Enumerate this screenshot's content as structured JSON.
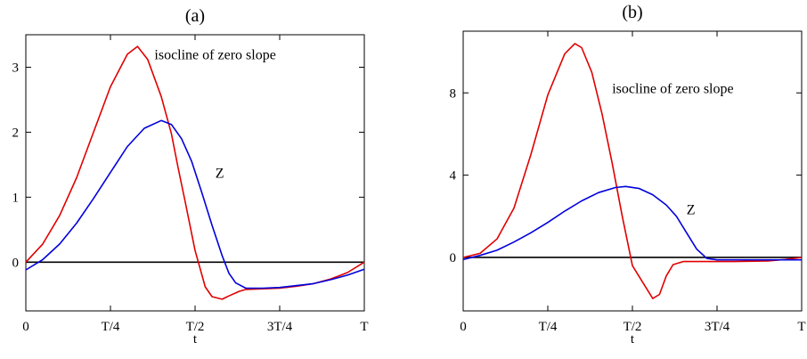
{
  "chart_data": [
    {
      "type": "line",
      "title": "(a)",
      "xlabel": "t",
      "ylabel": "",
      "xlim": [
        0,
        1
      ],
      "ylim": [
        -0.75,
        3.5
      ],
      "xticks": [
        0,
        0.25,
        0.5,
        0.75,
        1
      ],
      "xtick_labels": [
        "0",
        "T/4",
        "T/2",
        "3T/4",
        "T"
      ],
      "yticks": [
        0,
        1,
        2,
        3
      ],
      "ytick_labels": [
        "0",
        "1",
        "2",
        "3"
      ],
      "grid": false,
      "zero_line": true,
      "series": [
        {
          "name": "isocline of zero slope",
          "color": "#e00000",
          "x": [
            0,
            0.05,
            0.1,
            0.15,
            0.2,
            0.25,
            0.3,
            0.33,
            0.36,
            0.4,
            0.43,
            0.45,
            0.47,
            0.5,
            0.53,
            0.55,
            0.58,
            0.6,
            0.63,
            0.65,
            0.7,
            0.75,
            0.8,
            0.85,
            0.9,
            0.95,
            1
          ],
          "y": [
            0,
            0.28,
            0.72,
            1.3,
            2.0,
            2.7,
            3.2,
            3.32,
            3.12,
            2.55,
            1.98,
            1.45,
            0.95,
            0.18,
            -0.38,
            -0.53,
            -0.57,
            -0.52,
            -0.45,
            -0.42,
            -0.41,
            -0.4,
            -0.37,
            -0.33,
            -0.26,
            -0.16,
            0
          ]
        },
        {
          "name": "Z",
          "color": "#0000dd",
          "x": [
            0,
            0.05,
            0.1,
            0.15,
            0.2,
            0.25,
            0.3,
            0.35,
            0.4,
            0.43,
            0.46,
            0.49,
            0.52,
            0.55,
            0.58,
            0.6,
            0.62,
            0.65,
            0.7,
            0.75,
            0.8,
            0.85,
            0.9,
            0.95,
            1
          ],
          "y": [
            -0.12,
            0.04,
            0.28,
            0.6,
            0.98,
            1.38,
            1.78,
            2.06,
            2.18,
            2.12,
            1.9,
            1.55,
            1.07,
            0.57,
            0.1,
            -0.17,
            -0.32,
            -0.4,
            -0.4,
            -0.39,
            -0.36,
            -0.33,
            -0.27,
            -0.2,
            -0.11
          ]
        }
      ],
      "annotations": [
        {
          "text": "isocline of zero slope",
          "x": 0.38,
          "y": 3.12
        },
        {
          "text": "Z",
          "x": 0.56,
          "y": 1.3
        }
      ]
    },
    {
      "type": "line",
      "title": "(b)",
      "xlabel": "t",
      "ylabel": "",
      "xlim": [
        0,
        1
      ],
      "ylim": [
        -2.6,
        11.0
      ],
      "xticks": [
        0,
        0.25,
        0.5,
        0.75,
        1
      ],
      "xtick_labels": [
        "0",
        "T/4",
        "T/2",
        "3T/4",
        "T"
      ],
      "yticks": [
        0,
        4,
        8
      ],
      "ytick_labels": [
        "0",
        "4",
        "8"
      ],
      "grid": false,
      "zero_line": true,
      "series": [
        {
          "name": "isocline of zero slope",
          "color": "#e00000",
          "x": [
            0,
            0.05,
            0.1,
            0.15,
            0.2,
            0.25,
            0.3,
            0.33,
            0.35,
            0.38,
            0.41,
            0.44,
            0.47,
            0.5,
            0.53,
            0.56,
            0.58,
            0.6,
            0.62,
            0.65,
            0.7,
            0.8,
            0.9,
            0.95,
            1
          ],
          "y": [
            0,
            0.2,
            0.9,
            2.4,
            5.0,
            7.9,
            9.9,
            10.4,
            10.2,
            9.0,
            7.0,
            4.6,
            2.0,
            -0.4,
            -1.2,
            -2.0,
            -1.8,
            -0.9,
            -0.35,
            -0.2,
            -0.2,
            -0.2,
            -0.17,
            -0.1,
            0
          ]
        },
        {
          "name": "Z",
          "color": "#0000dd",
          "x": [
            0,
            0.05,
            0.1,
            0.15,
            0.2,
            0.25,
            0.3,
            0.35,
            0.4,
            0.45,
            0.48,
            0.52,
            0.56,
            0.6,
            0.63,
            0.66,
            0.69,
            0.72,
            0.75,
            0.8,
            0.9,
            1
          ],
          "y": [
            -0.1,
            0.1,
            0.35,
            0.75,
            1.2,
            1.7,
            2.25,
            2.75,
            3.15,
            3.4,
            3.45,
            3.35,
            3.05,
            2.55,
            2.0,
            1.2,
            0.4,
            -0.05,
            -0.12,
            -0.12,
            -0.12,
            -0.12
          ]
        }
      ],
      "annotations": [
        {
          "text": "isocline of zero slope",
          "x": 0.44,
          "y": 8.0
        },
        {
          "text": "Z",
          "x": 0.66,
          "y": 2.1
        }
      ]
    }
  ]
}
